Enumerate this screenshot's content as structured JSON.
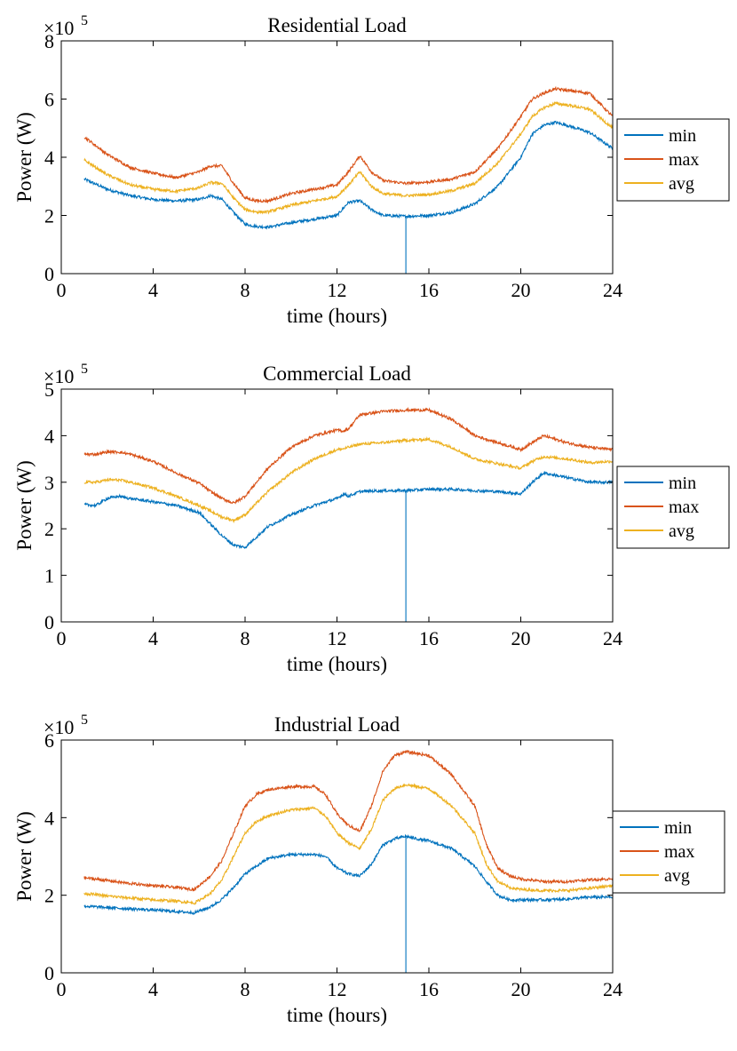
{
  "figure": {
    "colors": {
      "min": "#0072BD",
      "max": "#D95319",
      "avg": "#EDB120"
    },
    "line_series_order": [
      "min",
      "max",
      "avg"
    ]
  },
  "chart_data": [
    {
      "type": "line",
      "title": "Residential Load",
      "xlabel": "time (hours)",
      "ylabel": "Power (W)",
      "y_exponent_label": "×10",
      "y_exponent_power": "5",
      "xlim": [
        0,
        24
      ],
      "ylim": [
        0,
        8
      ],
      "y_scale_factor": 100000,
      "xticks": [
        "0",
        "4",
        "8",
        "12",
        "16",
        "20",
        "24"
      ],
      "yticks": [
        "0",
        "2",
        "4",
        "6",
        "8"
      ],
      "legend_position": "outside-right",
      "spike": {
        "series": "min",
        "x": 15,
        "y": 0
      },
      "x": [
        1,
        2,
        3,
        4,
        5,
        6,
        6.5,
        7,
        7.5,
        8,
        8.5,
        9,
        10,
        11,
        12,
        12.5,
        13,
        13.5,
        14,
        15,
        16,
        17,
        18,
        19,
        20,
        20.5,
        21,
        21.5,
        22,
        23,
        24
      ],
      "series": [
        {
          "name": "min",
          "values": [
            3.25,
            2.9,
            2.68,
            2.55,
            2.5,
            2.55,
            2.68,
            2.55,
            2.1,
            1.7,
            1.62,
            1.6,
            1.75,
            1.87,
            2.0,
            2.45,
            2.5,
            2.2,
            2.0,
            1.97,
            2.0,
            2.1,
            2.4,
            3.0,
            4.0,
            4.8,
            5.1,
            5.2,
            5.1,
            4.85,
            4.3
          ]
        },
        {
          "name": "max",
          "values": [
            4.7,
            4.1,
            3.65,
            3.45,
            3.3,
            3.5,
            3.7,
            3.7,
            3.1,
            2.6,
            2.5,
            2.5,
            2.75,
            2.9,
            3.05,
            3.5,
            4.05,
            3.5,
            3.2,
            3.1,
            3.15,
            3.25,
            3.5,
            4.3,
            5.4,
            6.0,
            6.2,
            6.35,
            6.3,
            6.2,
            5.4
          ]
        },
        {
          "name": "avg",
          "values": [
            3.9,
            3.4,
            3.05,
            2.9,
            2.83,
            2.95,
            3.13,
            3.1,
            2.6,
            2.2,
            2.12,
            2.12,
            2.35,
            2.5,
            2.65,
            3.05,
            3.5,
            3.0,
            2.75,
            2.68,
            2.72,
            2.85,
            3.1,
            3.8,
            4.8,
            5.4,
            5.7,
            5.85,
            5.8,
            5.65,
            5.0
          ]
        }
      ],
      "legend": [
        "min",
        "max",
        "avg"
      ]
    },
    {
      "type": "line",
      "title": "Commercial Load",
      "xlabel": "time (hours)",
      "ylabel": "Power (W)",
      "y_exponent_label": "×10",
      "y_exponent_power": "5",
      "xlim": [
        0,
        24
      ],
      "ylim": [
        0,
        5
      ],
      "y_scale_factor": 100000,
      "xticks": [
        "0",
        "4",
        "8",
        "12",
        "16",
        "20",
        "24"
      ],
      "yticks": [
        "0",
        "1",
        "2",
        "3",
        "4",
        "5"
      ],
      "legend_position": "outside-right",
      "spike": {
        "series": "min",
        "x": 15,
        "y": 0
      },
      "x": [
        1,
        1.5,
        2,
        2.5,
        3,
        4,
        5,
        6,
        6.5,
        7,
        7.5,
        8,
        9,
        10,
        11,
        12,
        12.3,
        12.5,
        13,
        14,
        15,
        16,
        17,
        18,
        19,
        20,
        20.5,
        21,
        22,
        23,
        24
      ],
      "series": [
        {
          "name": "min",
          "values": [
            2.52,
            2.5,
            2.65,
            2.7,
            2.65,
            2.58,
            2.5,
            2.35,
            2.1,
            1.85,
            1.65,
            1.6,
            2.05,
            2.3,
            2.5,
            2.65,
            2.75,
            2.7,
            2.8,
            2.82,
            2.82,
            2.85,
            2.85,
            2.82,
            2.8,
            2.75,
            3.0,
            3.2,
            3.1,
            3.0,
            3.0
          ]
        },
        {
          "name": "max",
          "values": [
            3.6,
            3.6,
            3.65,
            3.65,
            3.6,
            3.45,
            3.2,
            2.98,
            2.8,
            2.65,
            2.55,
            2.7,
            3.3,
            3.75,
            4.0,
            4.12,
            4.1,
            4.15,
            4.45,
            4.52,
            4.55,
            4.55,
            4.35,
            4.0,
            3.85,
            3.7,
            3.85,
            4.0,
            3.85,
            3.75,
            3.7
          ]
        },
        {
          "name": "avg",
          "values": [
            3.0,
            3.0,
            3.05,
            3.05,
            3.0,
            2.88,
            2.7,
            2.5,
            2.38,
            2.25,
            2.18,
            2.3,
            2.8,
            3.2,
            3.5,
            3.7,
            3.72,
            3.75,
            3.82,
            3.85,
            3.9,
            3.92,
            3.75,
            3.5,
            3.4,
            3.3,
            3.45,
            3.55,
            3.5,
            3.42,
            3.45
          ]
        }
      ],
      "legend": [
        "min",
        "max",
        "avg"
      ]
    },
    {
      "type": "line",
      "title": "Industrial Load",
      "xlabel": "time (hours)",
      "ylabel": "Power (W)",
      "y_exponent_label": "×10",
      "y_exponent_power": "5",
      "xlim": [
        0,
        24
      ],
      "ylim": [
        0,
        6
      ],
      "y_scale_factor": 100000,
      "xticks": [
        "0",
        "4",
        "8",
        "12",
        "16",
        "20",
        "24"
      ],
      "yticks": [
        "0",
        "2",
        "4",
        "6"
      ],
      "legend_position": "outside-right",
      "spike": {
        "series": "min",
        "x": 15,
        "y": 0
      },
      "x": [
        1,
        2,
        3,
        4,
        5,
        5.8,
        6.5,
        7,
        7.5,
        8,
        8.5,
        9,
        10,
        11,
        11.5,
        12,
        12.5,
        13,
        13.5,
        14,
        14.5,
        15,
        15.5,
        16,
        17,
        18,
        18.5,
        19,
        19.5,
        20,
        21,
        22,
        23,
        24
      ],
      "series": [
        {
          "name": "min",
          "values": [
            1.72,
            1.68,
            1.65,
            1.62,
            1.58,
            1.55,
            1.7,
            1.9,
            2.2,
            2.55,
            2.75,
            2.95,
            3.05,
            3.05,
            3.0,
            2.7,
            2.55,
            2.5,
            2.8,
            3.3,
            3.45,
            3.52,
            3.45,
            3.4,
            3.2,
            2.75,
            2.35,
            2.0,
            1.88,
            1.88,
            1.88,
            1.9,
            1.95,
            1.95
          ]
        },
        {
          "name": "max",
          "values": [
            2.45,
            2.38,
            2.3,
            2.25,
            2.2,
            2.15,
            2.5,
            2.9,
            3.6,
            4.3,
            4.6,
            4.72,
            4.8,
            4.8,
            4.6,
            4.1,
            3.8,
            3.65,
            4.3,
            5.2,
            5.6,
            5.7,
            5.65,
            5.6,
            5.1,
            4.3,
            3.3,
            2.7,
            2.5,
            2.42,
            2.35,
            2.35,
            2.4,
            2.42
          ]
        },
        {
          "name": "avg",
          "values": [
            2.05,
            1.98,
            1.93,
            1.88,
            1.85,
            1.8,
            2.05,
            2.4,
            3.0,
            3.6,
            3.9,
            4.05,
            4.2,
            4.25,
            4.05,
            3.6,
            3.35,
            3.2,
            3.7,
            4.45,
            4.75,
            4.85,
            4.8,
            4.75,
            4.3,
            3.6,
            2.8,
            2.35,
            2.2,
            2.15,
            2.12,
            2.12,
            2.18,
            2.25
          ]
        }
      ],
      "legend": [
        "min",
        "max",
        "avg"
      ]
    }
  ]
}
